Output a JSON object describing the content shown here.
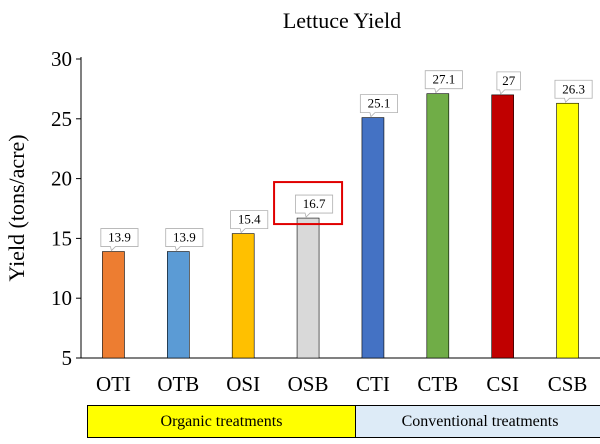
{
  "chart_data": {
    "type": "bar",
    "title": "Lettuce Yield",
    "ylabel": "Yield (tons/acre)",
    "xlabel": "",
    "categories": [
      "OTI",
      "OTB",
      "OSI",
      "OSB",
      "CTI",
      "CTB",
      "CSI",
      "CSB"
    ],
    "values": [
      13.9,
      13.9,
      15.4,
      16.7,
      25.1,
      27.1,
      27,
      26.3
    ],
    "value_labels": [
      "13.9",
      "13.9",
      "15.4",
      "16.7",
      "25.1",
      "27.1",
      "27",
      "26.3"
    ],
    "colors": [
      "#ED7D31",
      "#5B9BD5",
      "#FFC000",
      "#D9D9D9",
      "#4472C4",
      "#70AD47",
      "#C00000",
      "#FFFF00"
    ],
    "ylim": [
      5,
      30
    ],
    "yticks": [
      5,
      10,
      15,
      20,
      25,
      30
    ],
    "grid": false,
    "legend": "none",
    "highlighted_category": "OSB",
    "highlight_color": "#E00000",
    "groups": [
      {
        "label": "Organic treatments",
        "categories": [
          "OTI",
          "OTB",
          "OSI",
          "OSB"
        ],
        "color": "#FFFF00"
      },
      {
        "label": "Conventional treatments",
        "categories": [
          "CTI",
          "CTB",
          "CSI",
          "CSB"
        ],
        "color": "#DDEBF7"
      }
    ]
  }
}
